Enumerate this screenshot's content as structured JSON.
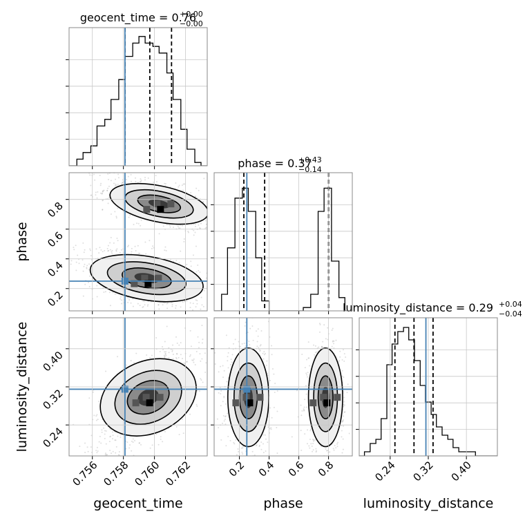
{
  "colors": {
    "truth": "#4682b4",
    "line": "#000000",
    "grid": "#c8c8c8",
    "scatter": "#888888"
  },
  "chart_data": {
    "type": "scatter",
    "kind": "corner plot",
    "parameters": [
      "geocent_time",
      "phase",
      "luminosity_distance"
    ],
    "truths": {
      "geocent_time": 0.7581,
      "phase": 0.25,
      "luminosity_distance": 0.315
    },
    "grid": true,
    "panels": {
      "geocent_time": {
        "title": {
          "label": "geocent_time",
          "value": "0.76",
          "sup": "+0.00",
          "sub": "−0.00"
        },
        "xlim": [
          0.7545,
          0.7634
        ],
        "ticks": [
          0.756,
          0.758,
          0.76,
          0.762
        ],
        "tick_labels": [
          "0.756",
          "0.758",
          "0.760",
          "0.762"
        ],
        "quantiles": [
          0.7581,
          0.7597,
          0.7611
        ],
        "bin_edges": [
          0.7545,
          0.755,
          0.7554,
          0.7559,
          0.7563,
          0.7568,
          0.7572,
          0.7577,
          0.7581,
          0.7586,
          0.759,
          0.7594,
          0.7599,
          0.7603,
          0.7608,
          0.7612,
          0.7617,
          0.7621,
          0.7626,
          0.763,
          0.7634
        ],
        "counts": [
          0,
          2,
          4,
          6,
          12,
          14,
          20,
          26,
          33,
          37,
          39,
          37,
          36,
          34,
          28,
          20,
          11,
          5,
          1,
          0
        ],
        "ymax": 40
      },
      "phase": {
        "title": {
          "label": "phase",
          "value": "0.37",
          "sup": "+0.43",
          "sub": "−0.14"
        },
        "xlim": [
          0.03,
          0.96
        ],
        "ticks": [
          0.2,
          0.4,
          0.6,
          0.8
        ],
        "tick_labels": [
          "0.2",
          "0.4",
          "0.6",
          "0.8"
        ],
        "quantiles": [
          0.23,
          0.37,
          0.8
        ],
        "bin_edges": [
          0.03,
          0.08,
          0.12,
          0.17,
          0.22,
          0.26,
          0.31,
          0.35,
          0.4,
          0.45,
          0.5,
          0.54,
          0.59,
          0.63,
          0.68,
          0.73,
          0.77,
          0.82,
          0.87,
          0.91,
          0.96
        ],
        "counts": [
          0,
          5,
          19,
          34,
          37,
          30,
          16,
          3,
          0,
          0,
          0,
          0,
          0,
          1,
          5,
          30,
          37,
          15,
          4,
          0
        ],
        "ymax": 40
      },
      "luminosity_distance": {
        "title": {
          "label": "luminosity_distance",
          "value": "0.29",
          "sup": "+0.04",
          "sub": "−0.04"
        },
        "xlim": [
          0.175,
          0.465
        ],
        "ticks": [
          0.24,
          0.32,
          0.4
        ],
        "tick_labels": [
          "0.24",
          "0.32",
          "0.40"
        ],
        "quantiles": [
          0.25,
          0.29,
          0.33
        ],
        "bin_edges": [
          0.175,
          0.186,
          0.198,
          0.21,
          0.221,
          0.233,
          0.244,
          0.256,
          0.268,
          0.279,
          0.291,
          0.303,
          0.314,
          0.326,
          0.337,
          0.349,
          0.361,
          0.372,
          0.384,
          0.396,
          0.407,
          0.419,
          0.43,
          0.442,
          0.454,
          0.465
        ],
        "counts": [
          0,
          1,
          3,
          4,
          9,
          22,
          27,
          30,
          31,
          28,
          23,
          17,
          13,
          10,
          7,
          5,
          4,
          2,
          1,
          1,
          1,
          0,
          0,
          0,
          0
        ],
        "ymax": 32
      }
    },
    "ylims": {
      "phase": [
        0.05,
        0.98
      ],
      "luminosity_distance": [
        0.175,
        0.465
      ]
    },
    "y_ticks": {
      "phase": {
        "ticks": [
          0.2,
          0.4,
          0.6,
          0.8
        ],
        "tick_labels": [
          "0.2",
          "0.4",
          "0.6",
          "0.8"
        ]
      },
      "luminosity_distance": {
        "ticks": [
          0.24,
          0.32,
          0.4
        ],
        "tick_labels": [
          "0.24",
          "0.32",
          "0.40"
        ]
      }
    },
    "pairs": [
      {
        "x": "geocent_time",
        "y": "phase",
        "modes": [
          {
            "cx": 0.7603,
            "cy": 0.77,
            "sx": 0.0014,
            "sy": 0.07,
            "rho": -0.55
          },
          {
            "cx": 0.7595,
            "cy": 0.27,
            "sx": 0.0016,
            "sy": 0.08,
            "rho": -0.45
          }
        ]
      },
      {
        "x": "geocent_time",
        "y": "luminosity_distance",
        "modes": [
          {
            "cx": 0.7596,
            "cy": 0.298,
            "sx": 0.0014,
            "sy": 0.045,
            "rho": 0.6
          }
        ]
      },
      {
        "x": "phase",
        "y": "luminosity_distance",
        "modes": [
          {
            "cx": 0.26,
            "cy": 0.298,
            "sx": 0.06,
            "sy": 0.045,
            "rho": 0.0
          },
          {
            "cx": 0.78,
            "cy": 0.298,
            "sx": 0.05,
            "sy": 0.045,
            "rho": 0.0
          }
        ]
      }
    ]
  }
}
